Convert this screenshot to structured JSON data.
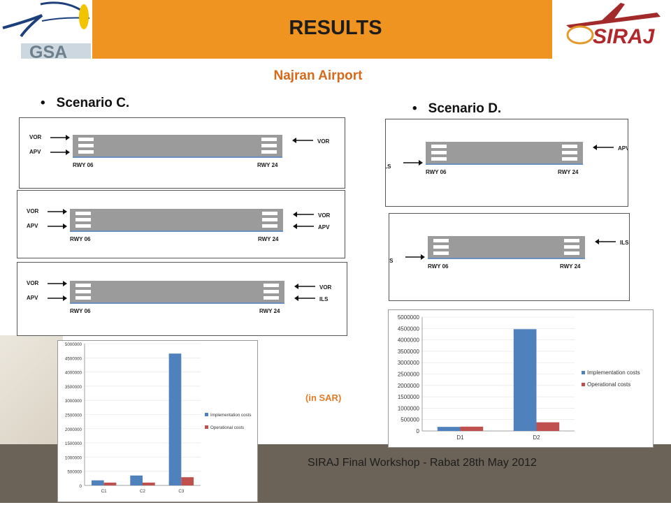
{
  "header": {
    "title": "RESULTS",
    "left_logo_text": "GSA",
    "right_logo_text": "SIRAJ"
  },
  "subtitle": "Najran Airport",
  "scenario_c": {
    "label": "Scenario C."
  },
  "scenario_d": {
    "label": "Scenario D."
  },
  "runways": {
    "left": "RWY 06",
    "right": "RWY 24"
  },
  "diagrams_c": [
    {
      "left": [
        "VOR",
        "APV"
      ],
      "right": [
        "VOR"
      ]
    },
    {
      "left": [
        "VOR",
        "APV"
      ],
      "right": [
        "VOR",
        "APV"
      ]
    },
    {
      "left": [
        "VOR",
        "APV"
      ],
      "right": [
        "VOR",
        "ILS"
      ]
    }
  ],
  "diagrams_d": [
    {
      "left": [
        "ILS"
      ],
      "right": [
        "APV"
      ]
    },
    {
      "left": [
        "ILS"
      ],
      "right": [
        "ILS"
      ]
    }
  ],
  "currency_note": "(in SAR)",
  "footer": "SIRAJ Final Workshop -  Rabat 28th May 2012",
  "colors": {
    "header": "#ef9421",
    "implementation": "#4f81bd",
    "operational": "#c0504d",
    "footer": "#6b6357"
  },
  "chart_data": [
    {
      "type": "bar",
      "categories": [
        "C1",
        "C2",
        "C3"
      ],
      "series": [
        {
          "name": "Implementation costs",
          "values": [
            180000,
            350000,
            4650000
          ]
        },
        {
          "name": "Operational costs",
          "values": [
            100000,
            100000,
            290000
          ]
        }
      ],
      "ylim": [
        0,
        5000000
      ],
      "yticks": [
        "0",
        "500000",
        "1000000",
        "1500000",
        "2000000",
        "2500000",
        "3000000",
        "3500000",
        "4000000",
        "4500000",
        "5000000"
      ],
      "legend": "right"
    },
    {
      "type": "bar",
      "categories": [
        "D1",
        "D2"
      ],
      "series": [
        {
          "name": "Implementation costs",
          "values": [
            180000,
            4470000
          ]
        },
        {
          "name": "Operational costs",
          "values": [
            190000,
            380000
          ]
        }
      ],
      "ylim": [
        0,
        5000000
      ],
      "yticks": [
        "0",
        "500000",
        "1000000",
        "1500000",
        "2000000",
        "2500000",
        "3000000",
        "3500000",
        "4000000",
        "4500000",
        "5000000"
      ],
      "legend": "right"
    }
  ]
}
